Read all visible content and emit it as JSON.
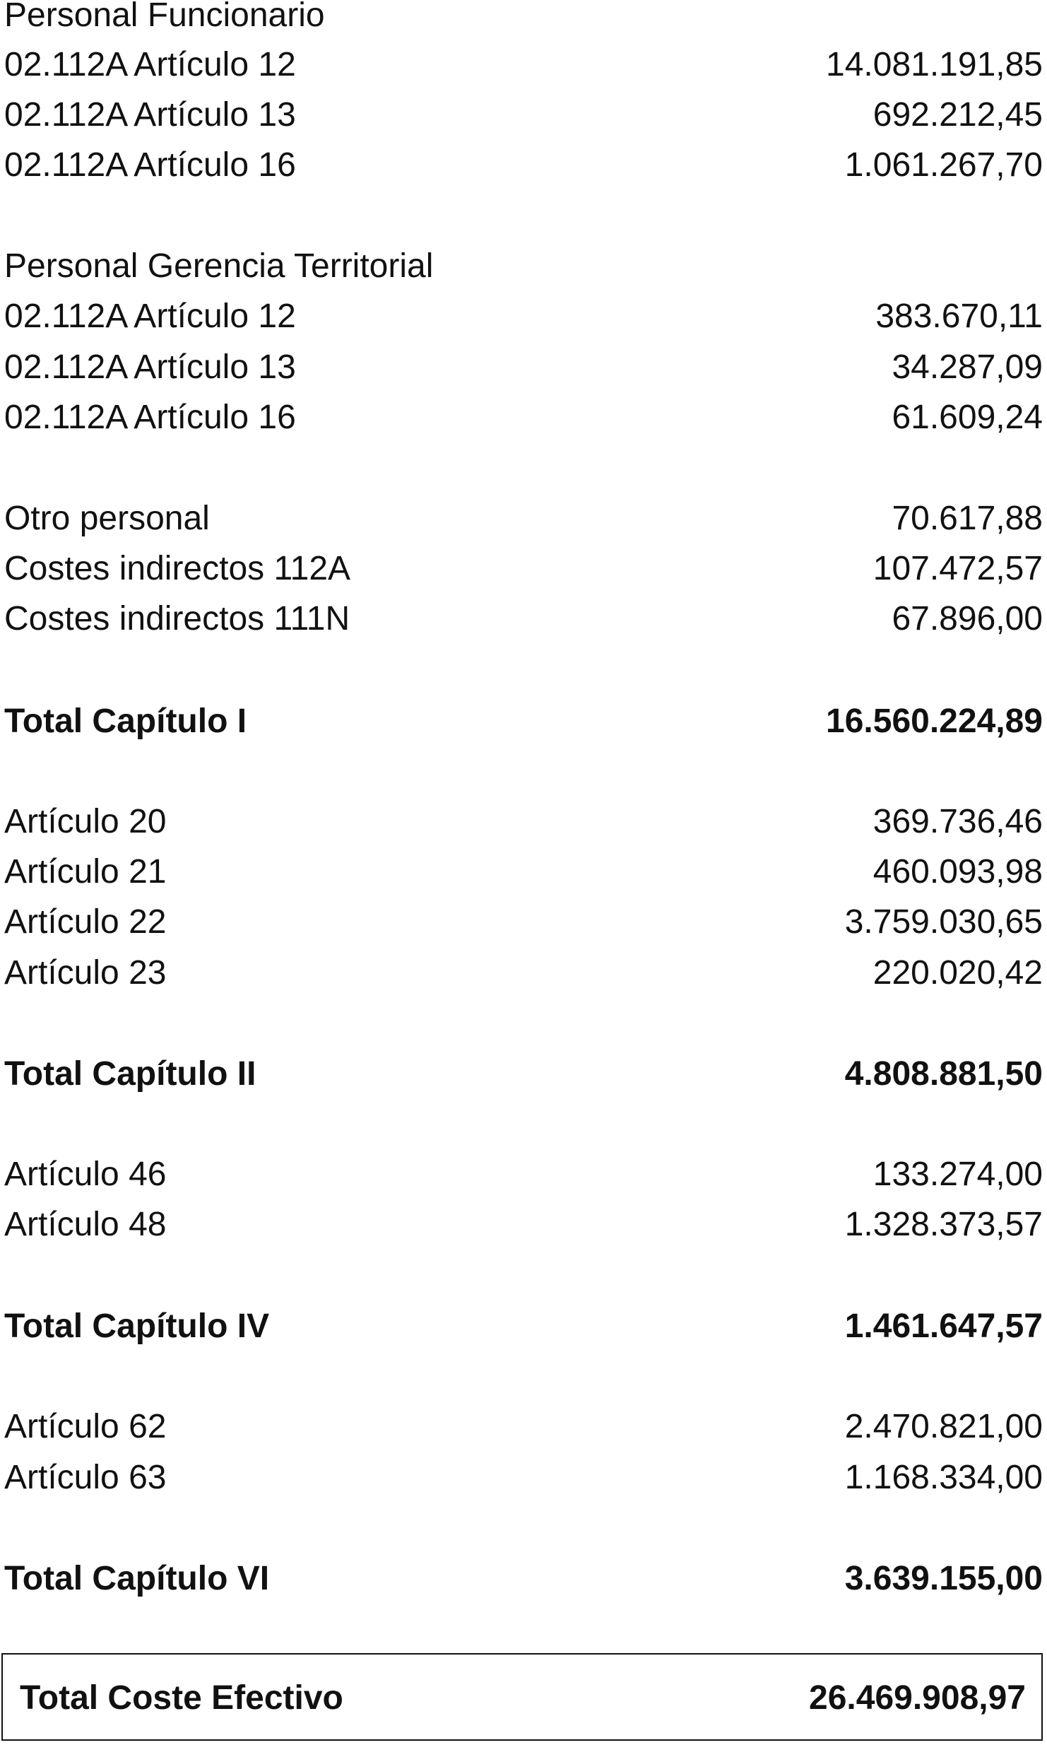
{
  "sections": {
    "funcionario_header": "Personal Funcionario",
    "funcionario": [
      {
        "label": "02.112A Artículo 12",
        "value": "14.081.191,85"
      },
      {
        "label": "02.112A Artículo 13",
        "value": "692.212,45"
      },
      {
        "label": "02.112A Artículo 16",
        "value": "1.061.267,70"
      }
    ],
    "gerencia_header": "Personal Gerencia Territorial",
    "gerencia": [
      {
        "label": "02.112A Artículo 12",
        "value": "383.670,11"
      },
      {
        "label": "02.112A Artículo 13",
        "value": "34.287,09"
      },
      {
        "label": "02.112A Artículo 16",
        "value": "61.609,24"
      }
    ],
    "otros": [
      {
        "label": "Otro personal",
        "value": "70.617,88"
      },
      {
        "label": "Costes indirectos 112A",
        "value": "107.472,57"
      },
      {
        "label": "Costes indirectos 111N",
        "value": "67.896,00"
      }
    ],
    "total_cap1": {
      "label": "Total Capítulo I",
      "value": "16.560.224,89"
    },
    "cap2": [
      {
        "label": "Artículo 20",
        "value": "369.736,46"
      },
      {
        "label": "Artículo 21",
        "value": "460.093,98"
      },
      {
        "label": "Artículo 22",
        "value": "3.759.030,65"
      },
      {
        "label": "Artículo 23",
        "value": "220.020,42"
      }
    ],
    "total_cap2": {
      "label": "Total Capítulo II",
      "value": "4.808.881,50"
    },
    "cap4": [
      {
        "label": "Artículo 46",
        "value": "133.274,00"
      },
      {
        "label": "Artículo 48",
        "value": "1.328.373,57"
      }
    ],
    "total_cap4": {
      "label": "Total Capítulo IV",
      "value": "1.461.647,57"
    },
    "cap6": [
      {
        "label": "Artículo 62",
        "value": "2.470.821,00"
      },
      {
        "label": "Artículo 63",
        "value": "1.168.334,00"
      }
    ],
    "total_cap6": {
      "label": "Total Capítulo VI",
      "value": "3.639.155,00"
    }
  },
  "grand_total": {
    "label": "Total Coste Efectivo",
    "value": "26.469.908,97"
  }
}
